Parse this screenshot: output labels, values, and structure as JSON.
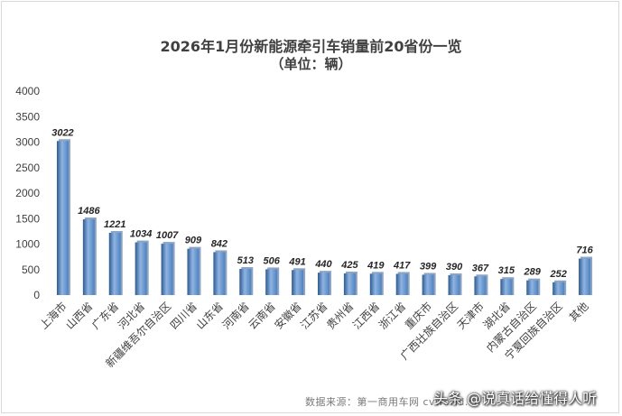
{
  "chart_data": {
    "type": "bar",
    "title": "2026年1月份新能源牵引车销量前20省份一览",
    "subtitle": "（单位：辆）",
    "categories": [
      "上海市",
      "山西省",
      "广东省",
      "河北省",
      "新疆维吾尔自治区",
      "四川省",
      "山东省",
      "河南省",
      "云南省",
      "安徽省",
      "江苏省",
      "贵州省",
      "江西省",
      "浙江省",
      "重庆市",
      "广西壮族自治区",
      "天津市",
      "湖北省",
      "内蒙古自治区",
      "宁夏回族自治区",
      "其他"
    ],
    "values": [
      3022,
      1486,
      1221,
      1034,
      1007,
      909,
      842,
      513,
      506,
      491,
      440,
      425,
      419,
      417,
      399,
      390,
      367,
      315,
      289,
      252,
      716
    ],
    "ylim": [
      0,
      4000
    ],
    "yticks": [
      0,
      500,
      1000,
      1500,
      2000,
      2500,
      3000,
      3500,
      4000
    ],
    "grid": false,
    "legend": "none",
    "bar_color": "#4f81bd",
    "bar_color_light": "#8eb4e3",
    "bar_color_dark": "#2f5a8f"
  },
  "watermark": "数据来源：第一商用车网 cvworld.cn",
  "brand": "头条 @说真话给懂得人听"
}
